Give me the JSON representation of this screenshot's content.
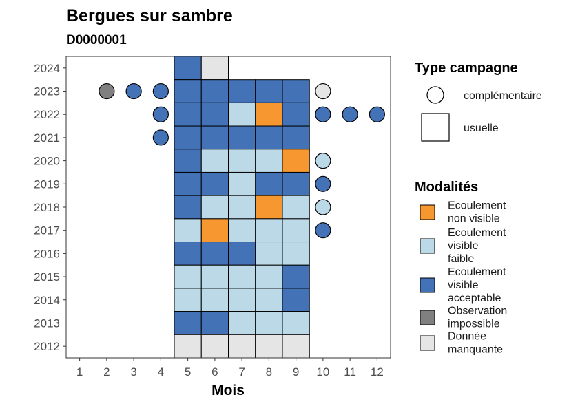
{
  "chart_data": {
    "type": "heatmap",
    "title": "Bergues sur sambre",
    "subtitle": "D0000001",
    "xlabel": "Mois",
    "ylabel": "",
    "x_ticks": [
      "1",
      "2",
      "3",
      "4",
      "5",
      "6",
      "7",
      "8",
      "9",
      "10",
      "11",
      "12"
    ],
    "y_ticks": [
      "2012",
      "2013",
      "2014",
      "2015",
      "2016",
      "2017",
      "2018",
      "2019",
      "2020",
      "2021",
      "2022",
      "2023",
      "2024"
    ],
    "xlim": [
      0.5,
      12.5
    ],
    "ylim": [
      2011.5,
      2024.5
    ],
    "legend_type": {
      "title": "Type campagne",
      "items": [
        {
          "label": "complémentaire",
          "shape": "circle"
        },
        {
          "label": "usuelle",
          "shape": "square"
        }
      ]
    },
    "legend_modalites": {
      "title": "Modalités",
      "items": [
        {
          "key": "nv",
          "lines": [
            "Ecoulement",
            "non visible"
          ],
          "color": "#F7972F"
        },
        {
          "key": "vf",
          "lines": [
            "Ecoulement",
            "visible",
            "faible"
          ],
          "color": "#BCD9E8"
        },
        {
          "key": "va",
          "lines": [
            "Ecoulement",
            "visible",
            "acceptable"
          ],
          "color": "#4472B6"
        },
        {
          "key": "oi",
          "lines": [
            "Observation",
            "impossible"
          ],
          "color": "#808080"
        },
        {
          "key": "dm",
          "lines": [
            "Donnée",
            "manquante"
          ],
          "color": "#E5E5E5"
        }
      ]
    },
    "usuelle": [
      {
        "year": 2024,
        "month": 5,
        "modalite": "va"
      },
      {
        "year": 2024,
        "month": 6,
        "modalite": "dm"
      },
      {
        "year": 2023,
        "month": 5,
        "modalite": "va"
      },
      {
        "year": 2023,
        "month": 6,
        "modalite": "va"
      },
      {
        "year": 2023,
        "month": 7,
        "modalite": "va"
      },
      {
        "year": 2023,
        "month": 8,
        "modalite": "va"
      },
      {
        "year": 2023,
        "month": 9,
        "modalite": "va"
      },
      {
        "year": 2022,
        "month": 5,
        "modalite": "va"
      },
      {
        "year": 2022,
        "month": 6,
        "modalite": "va"
      },
      {
        "year": 2022,
        "month": 7,
        "modalite": "vf"
      },
      {
        "year": 2022,
        "month": 8,
        "modalite": "nv"
      },
      {
        "year": 2022,
        "month": 9,
        "modalite": "va"
      },
      {
        "year": 2021,
        "month": 5,
        "modalite": "va"
      },
      {
        "year": 2021,
        "month": 6,
        "modalite": "va"
      },
      {
        "year": 2021,
        "month": 7,
        "modalite": "va"
      },
      {
        "year": 2021,
        "month": 8,
        "modalite": "va"
      },
      {
        "year": 2021,
        "month": 9,
        "modalite": "va"
      },
      {
        "year": 2020,
        "month": 5,
        "modalite": "va"
      },
      {
        "year": 2020,
        "month": 6,
        "modalite": "vf"
      },
      {
        "year": 2020,
        "month": 7,
        "modalite": "vf"
      },
      {
        "year": 2020,
        "month": 8,
        "modalite": "vf"
      },
      {
        "year": 2020,
        "month": 9,
        "modalite": "nv"
      },
      {
        "year": 2019,
        "month": 5,
        "modalite": "va"
      },
      {
        "year": 2019,
        "month": 6,
        "modalite": "va"
      },
      {
        "year": 2019,
        "month": 7,
        "modalite": "vf"
      },
      {
        "year": 2019,
        "month": 8,
        "modalite": "va"
      },
      {
        "year": 2019,
        "month": 9,
        "modalite": "va"
      },
      {
        "year": 2018,
        "month": 5,
        "modalite": "va"
      },
      {
        "year": 2018,
        "month": 6,
        "modalite": "vf"
      },
      {
        "year": 2018,
        "month": 7,
        "modalite": "vf"
      },
      {
        "year": 2018,
        "month": 8,
        "modalite": "nv"
      },
      {
        "year": 2018,
        "month": 9,
        "modalite": "vf"
      },
      {
        "year": 2017,
        "month": 5,
        "modalite": "vf"
      },
      {
        "year": 2017,
        "month": 6,
        "modalite": "nv"
      },
      {
        "year": 2017,
        "month": 7,
        "modalite": "vf"
      },
      {
        "year": 2017,
        "month": 8,
        "modalite": "vf"
      },
      {
        "year": 2017,
        "month": 9,
        "modalite": "vf"
      },
      {
        "year": 2016,
        "month": 5,
        "modalite": "va"
      },
      {
        "year": 2016,
        "month": 6,
        "modalite": "va"
      },
      {
        "year": 2016,
        "month": 7,
        "modalite": "va"
      },
      {
        "year": 2016,
        "month": 8,
        "modalite": "vf"
      },
      {
        "year": 2016,
        "month": 9,
        "modalite": "vf"
      },
      {
        "year": 2015,
        "month": 5,
        "modalite": "vf"
      },
      {
        "year": 2015,
        "month": 6,
        "modalite": "vf"
      },
      {
        "year": 2015,
        "month": 7,
        "modalite": "vf"
      },
      {
        "year": 2015,
        "month": 8,
        "modalite": "vf"
      },
      {
        "year": 2015,
        "month": 9,
        "modalite": "va"
      },
      {
        "year": 2014,
        "month": 5,
        "modalite": "vf"
      },
      {
        "year": 2014,
        "month": 6,
        "modalite": "vf"
      },
      {
        "year": 2014,
        "month": 7,
        "modalite": "vf"
      },
      {
        "year": 2014,
        "month": 8,
        "modalite": "vf"
      },
      {
        "year": 2014,
        "month": 9,
        "modalite": "va"
      },
      {
        "year": 2013,
        "month": 5,
        "modalite": "va"
      },
      {
        "year": 2013,
        "month": 6,
        "modalite": "va"
      },
      {
        "year": 2013,
        "month": 7,
        "modalite": "vf"
      },
      {
        "year": 2013,
        "month": 8,
        "modalite": "vf"
      },
      {
        "year": 2013,
        "month": 9,
        "modalite": "vf"
      },
      {
        "year": 2012,
        "month": 5,
        "modalite": "dm"
      },
      {
        "year": 2012,
        "month": 6,
        "modalite": "dm"
      },
      {
        "year": 2012,
        "month": 7,
        "modalite": "dm"
      },
      {
        "year": 2012,
        "month": 8,
        "modalite": "dm"
      },
      {
        "year": 2012,
        "month": 9,
        "modalite": "dm"
      }
    ],
    "complementaire": [
      {
        "year": 2023,
        "month": 2,
        "modalite": "oi"
      },
      {
        "year": 2023,
        "month": 3,
        "modalite": "va"
      },
      {
        "year": 2023,
        "month": 4,
        "modalite": "va"
      },
      {
        "year": 2023,
        "month": 10,
        "modalite": "dm"
      },
      {
        "year": 2022,
        "month": 4,
        "modalite": "va"
      },
      {
        "year": 2022,
        "month": 10,
        "modalite": "va"
      },
      {
        "year": 2022,
        "month": 11,
        "modalite": "va"
      },
      {
        "year": 2022,
        "month": 12,
        "modalite": "va"
      },
      {
        "year": 2021,
        "month": 4,
        "modalite": "va"
      },
      {
        "year": 2020,
        "month": 10,
        "modalite": "vf"
      },
      {
        "year": 2019,
        "month": 10,
        "modalite": "va"
      },
      {
        "year": 2018,
        "month": 10,
        "modalite": "vf"
      },
      {
        "year": 2017,
        "month": 10,
        "modalite": "va"
      }
    ]
  }
}
